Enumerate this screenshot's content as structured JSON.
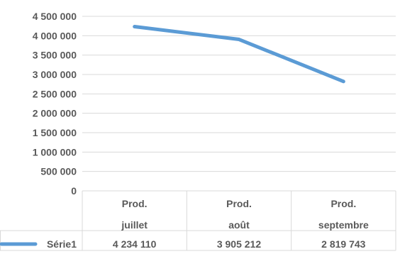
{
  "chart_data": {
    "type": "line",
    "title": "",
    "xlabel": "",
    "ylabel": "",
    "categories": [
      [
        "Prod.",
        "juillet"
      ],
      [
        "Prod.",
        "août"
      ],
      [
        "Prod.",
        "septembre"
      ]
    ],
    "series": [
      {
        "name": "Série1",
        "values": [
          4234110,
          3905212,
          2819743
        ],
        "color": "#5B9BD5"
      }
    ],
    "data_labels": [
      "4 234 110",
      "3 905 212",
      "2 819 743"
    ],
    "ylim": [
      0,
      4500000
    ],
    "yticks": [
      0,
      500000,
      1000000,
      1500000,
      2000000,
      2500000,
      3000000,
      3500000,
      4000000,
      4500000
    ],
    "ytick_labels": [
      "0",
      "500 000",
      "1 000 000",
      "1 500 000",
      "2 000 000",
      "2 500 000",
      "3 000 000",
      "3 500 000",
      "4 000 000",
      "4 500 000"
    ],
    "grid": true,
    "data_table": true,
    "legend": "data-table"
  }
}
